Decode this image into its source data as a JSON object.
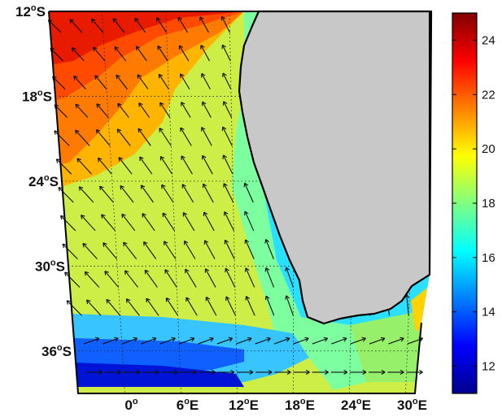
{
  "map": {
    "lat_labels": [
      {
        "deg": "12",
        "unit": "o",
        "dir": "S",
        "lat": -12
      },
      {
        "deg": "18",
        "unit": "o",
        "dir": "S",
        "lat": -18
      },
      {
        "deg": "24",
        "unit": "o",
        "dir": "S",
        "lat": -24
      },
      {
        "deg": "30",
        "unit": "o",
        "dir": "S",
        "lat": -30
      },
      {
        "deg": "36",
        "unit": "o",
        "dir": "S",
        "lat": -36
      }
    ],
    "lon_labels": [
      {
        "deg": "0",
        "unit": "o",
        "dir": "",
        "lon": 0
      },
      {
        "deg": "6",
        "unit": "o",
        "dir": "E",
        "lon": 6
      },
      {
        "deg": "12",
        "unit": "o",
        "dir": "E",
        "lon": 12
      },
      {
        "deg": "18",
        "unit": "o",
        "dir": "E",
        "lon": 18
      },
      {
        "deg": "24",
        "unit": "o",
        "dir": "E",
        "lon": 24
      },
      {
        "deg": "30",
        "unit": "o",
        "dir": "E",
        "lon": 30
      }
    ],
    "land_color": "#c8c8c8",
    "coast_color": "#000000",
    "arrow_color": "#111111",
    "grid": "dotted"
  },
  "colorbar": {
    "min": 11,
    "max": 25,
    "ticks": [
      12,
      14,
      16,
      18,
      20,
      22,
      24
    ],
    "colormap": "jet",
    "colors": [
      "#00008f",
      "#0000ff",
      "#0080ff",
      "#00ffff",
      "#80ff80",
      "#ffff00",
      "#ff8000",
      "#ff0000",
      "#800000"
    ]
  }
}
